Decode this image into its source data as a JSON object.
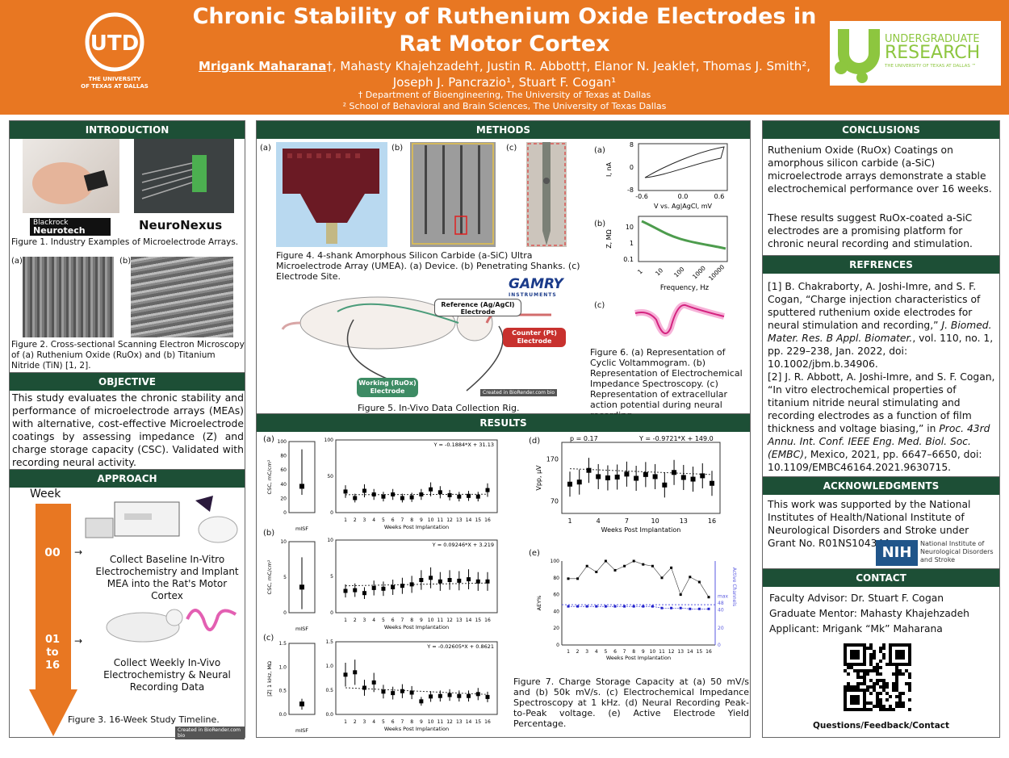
{
  "header": {
    "title": "Chronic Stability of Ruthenium Oxide Electrodes in Rat Motor Cortex",
    "lead_author": "Mrigank Maharana",
    "lead_mark": "†",
    "authors_rest": ", Mahasty Khajehzadeh†, Justin R. Abbott†, Elanor N. Jeakle†, Thomas J. Smith², Joseph J. Pancrazio¹, Stuart F. Cogan¹",
    "affil1": "† Department of Bioengineering, The University of Texas at Dallas",
    "affil2": "² School of Behavioral and Brain Sciences, The University of Texas Dallas",
    "utd_logo_text": "UTD",
    "utd_sub1": "THE UNIVERSITY",
    "utd_sub2": "OF TEXAS AT DALLAS",
    "ur_line1": "UNDERGRADUATE",
    "ur_line2": "RESEARCH",
    "ur_line3": "THE UNIVERSITY OF TEXAS AT DALLAS ™"
  },
  "intro": {
    "heading": "INTRODUCTION",
    "brand1a": "Blackrock",
    "brand1b": "Neurotech",
    "brand2": "NeuroNexus",
    "fig1": "Figure 1. Industry Examples of Microelectrode Arrays.",
    "label_a": "(a)",
    "label_b": "(b)",
    "fig2": "Figure 2. Cross-sectional Scanning Electron Microscopy of (a) Ruthenium Oxide (RuOx) and (b) Titanium Nitride (TiN) [1, 2]."
  },
  "objective": {
    "heading": "OBJECTIVE",
    "text": "This study evaluates the chronic stability and performance of microelectrode arrays (MEAs) with alternative, cost-effective Microelectrode coatings by assessing impedance (Z) and charge storage capacity (CSC). Validated with recording neural activity."
  },
  "approach": {
    "heading": "APPROACH",
    "week": "Week",
    "step1": "00",
    "step2a": "01",
    "step2b": "to",
    "step2c": "16",
    "task1": "Collect Baseline In-Vitro Electrochemistry and Implant MEA into the Rat's Motor Cortex",
    "task2": "Collect Weekly In-Vivo Electrochemistry & Neural Recording Data",
    "fig3": "Figure 3. 16-Week Study Timeline.",
    "credit": "Created in BioRender.com bio"
  },
  "methods": {
    "heading": "METHODS",
    "la": "(a)",
    "lb": "(b)",
    "lc": "(c)",
    "fig4": "Figure 4. 4-shank Amorphous Silicon Carbide (a-SiC) Ultra Microelectrode Array (UMEA). (a) Device. (b) Penetrating Shanks. (c) Electrode Site.",
    "gamry": "GAMRY",
    "gamry_sub": "INSTRUMENTS",
    "ref_elec": "Reference (Ag/AgCl) Electrode",
    "counter_elec": "Counter (Pt) Electrode",
    "working_elec": "Working (RuOx) Electrode",
    "credit": "Created in BioRender.com bio",
    "fig5": "Figure 5. In-Vivo Data Collection Rig.",
    "cv_ylabel": "I, nA",
    "cv_xlabel": "V vs. Ag|AgCl, mV",
    "cv_yt": [
      "8",
      "0",
      "-8"
    ],
    "cv_xt": [
      "-0.6",
      "0.0",
      "0.6"
    ],
    "eis_ylabel": "Z, MΩ",
    "eis_xlabel": "Frequency, Hz",
    "eis_yt": [
      "10",
      "1",
      "0.1"
    ],
    "eis_xt": [
      "1",
      "10",
      "100",
      "1000",
      "10000"
    ],
    "fig6": "Figure 6. (a) Representation of Cyclic Voltammogram. (b) Representation of Electrochemical Impedance Spectroscopy. (c) Representation of extracellular action potential during neural recording."
  },
  "results": {
    "heading": "RESULTS",
    "la": "(a)",
    "lb": "(b)",
    "lc": "(c)",
    "ld": "(d)",
    "le": "(e)",
    "a_eq": "Y = -0.1884*X + 31.13",
    "b_eq": "Y = 0.09246*X + 3.219",
    "c_eq": "Y = -0.02605*X + 0.8621",
    "d_p": "p = 0.17",
    "d_eq": "Y = -0.9721*X + 149.0",
    "a_ylabel": "CSC, mC/cm²",
    "b_ylabel": "CSC, mC/cm²",
    "c_ylabel": "|Z| 1 kHz, MΩ",
    "d_ylabel": "Vpp, μV",
    "e_ylabel": "AEY%",
    "e_ylabel2": "Active Channels",
    "misf": "mISF",
    "weeks_label": "Weeks Post Implantation",
    "a_yt_small": [
      "100",
      "80",
      "60",
      "40",
      "20",
      "0"
    ],
    "a_yt": [
      "100",
      "50",
      "0"
    ],
    "b_yt": [
      "10",
      "5",
      "0"
    ],
    "c_yt": [
      "1.5",
      "1.0",
      "0.5",
      "0.0"
    ],
    "d_yt": [
      "170",
      "70"
    ],
    "d_xt": [
      "1",
      "4",
      "7",
      "10",
      "13",
      "16"
    ],
    "e_yt": [
      "100",
      "80",
      "60",
      "40",
      "20",
      "0"
    ],
    "e_yt2": [
      "max",
      "48",
      "40",
      "20",
      "0"
    ],
    "weeks": [
      "1",
      "2",
      "3",
      "4",
      "5",
      "6",
      "7",
      "8",
      "9",
      "10",
      "11",
      "12",
      "13",
      "14",
      "15",
      "16"
    ],
    "fig7": "Figure 7. Charge Storage Capacity at (a) 50 mV/s and (b) 50k mV/s. (c) Electrochemical Impedance Spectroscopy at 1 kHz. (d) Neural Recording Peak-to-Peak voltage. (e) Active Electrode Yield Percentage."
  },
  "chart_data": [
    {
      "type": "scatter",
      "title": "(a)",
      "ylabel": "CSC, mC/cm²",
      "xlabel": "Weeks Post Implantation",
      "ylim": [
        0,
        100
      ],
      "misf": {
        "mean": 37,
        "err": [
          25,
          89
        ]
      },
      "x": [
        1,
        2,
        3,
        4,
        5,
        6,
        7,
        8,
        9,
        10,
        11,
        12,
        13,
        14,
        15,
        16
      ],
      "values": [
        29,
        20,
        30,
        25,
        22,
        25,
        20,
        21,
        25,
        32,
        28,
        24,
        22,
        23,
        22,
        31
      ]
    },
    {
      "type": "scatter",
      "title": "(b)",
      "ylabel": "CSC, mC/cm²",
      "xlabel": "Weeks Post Implantation",
      "ylim": [
        0,
        10
      ],
      "misf": {
        "mean": 3.6,
        "err": [
          0.5,
          7.8
        ]
      },
      "x": [
        1,
        2,
        3,
        4,
        5,
        6,
        7,
        8,
        9,
        10,
        11,
        12,
        13,
        14,
        15,
        16
      ],
      "values": [
        3,
        3.1,
        2.7,
        3.4,
        3.3,
        3.5,
        3.7,
        3.9,
        4.5,
        4.8,
        4.3,
        4.5,
        4.4,
        4.6,
        4.3,
        4.3
      ]
    },
    {
      "type": "scatter",
      "title": "(c)",
      "ylabel": "|Z| 1 kHz, MΩ",
      "xlabel": "Weeks Post Implantation",
      "ylim": [
        0,
        1.5
      ],
      "misf": {
        "mean": 0.22,
        "err": [
          0.1,
          0.33
        ]
      },
      "x": [
        1,
        2,
        3,
        4,
        5,
        6,
        7,
        8,
        9,
        10,
        11,
        12,
        13,
        14,
        15,
        16
      ],
      "values": [
        0.82,
        0.87,
        0.55,
        0.66,
        0.47,
        0.44,
        0.48,
        0.45,
        0.27,
        0.37,
        0.38,
        0.4,
        0.38,
        0.38,
        0.42,
        0.36
      ]
    },
    {
      "type": "scatter",
      "title": "(d)",
      "ylabel": "Vpp, μV",
      "xlabel": "Weeks Post Implantation",
      "x": [
        1,
        2,
        3,
        4,
        5,
        6,
        7,
        8,
        9,
        10,
        11,
        12,
        13,
        14,
        15,
        16
      ],
      "values": [
        110,
        115,
        143,
        128,
        125,
        127,
        134,
        124,
        133,
        128,
        108,
        138,
        126,
        122,
        130,
        112
      ]
    },
    {
      "type": "line",
      "title": "(e)",
      "ylabel": "AEY%",
      "xlabel": "Weeks Post Implantation",
      "ylim": [
        0,
        100
      ],
      "x": [
        1,
        2,
        3,
        4,
        5,
        6,
        7,
        8,
        9,
        10,
        11,
        12,
        13,
        14,
        15,
        16
      ],
      "series": [
        {
          "values": [
            79,
            79,
            94,
            87,
            100,
            89,
            94,
            100,
            96,
            94,
            80,
            92,
            60,
            81,
            75,
            57
          ]
        },
        {
          "values": [
            46,
            46,
            46,
            46,
            46,
            46,
            46,
            46,
            46,
            46,
            44,
            44,
            44,
            43,
            43,
            43
          ]
        }
      ]
    }
  ],
  "conclusions": {
    "heading": "CONCLUSIONS",
    "p1": "Ruthenium Oxide (RuOx) Coatings on amorphous silicon carbide (a-SiC) microelectrode arrays demonstrate a stable electrochemical performance over 16 weeks.",
    "p2": "These results suggest RuOx-coated a-SiC electrodes are a promising platform for chronic neural recording and stimulation."
  },
  "references": {
    "heading": "REFRENCES",
    "r1_a": "[1] B. Chakraborty, A. Joshi-Imre, and S. F. Cogan, “Charge injection characteristics of sputtered ruthenium oxide electrodes for neural stimulation and recording,” ",
    "r1_i": "J. Biomed. Mater. Res. B Appl. Biomater.",
    "r1_b": ", vol. 110, no. 1, pp. 229–238, Jan. 2022, doi: 10.1002/jbm.b.34906.",
    "r2_a": "[2] J. R. Abbott, A. Joshi-Imre, and S. F. Cogan, “In vitro electrochemical properties of titanium nitride neural stimulating and recording electrodes as a function of film thickness and voltage biasing,” in ",
    "r2_i": "Proc. 43rd Annu. Int. Conf. IEEE Eng. Med. Biol. Soc. (EMBC)",
    "r2_b": ", Mexico, 2021, pp. 6647–6650, doi: 10.1109/EMBC46164.2021.9630715."
  },
  "ack": {
    "heading": "ACKNOWLEDGMENTS",
    "text": "This work was supported by the National Institutes of Health/National Institute of Neurological Disorders and Stroke under Grant No. R01NS104344.",
    "nih": "NIH",
    "nih_sub1": "National Institute of",
    "nih_sub2": "Neurological Disorders",
    "nih_sub3": "and Stroke"
  },
  "contact": {
    "heading": "CONTACT",
    "advisor": "Faculty Advisor: Dr. Stuart F. Cogan",
    "mentor": "Graduate Mentor: Mahasty Khajehzadeh",
    "applicant": "Applicant: Mrigank “Mk” Maharana",
    "qr_label": "Questions/Feedback/Contact"
  }
}
